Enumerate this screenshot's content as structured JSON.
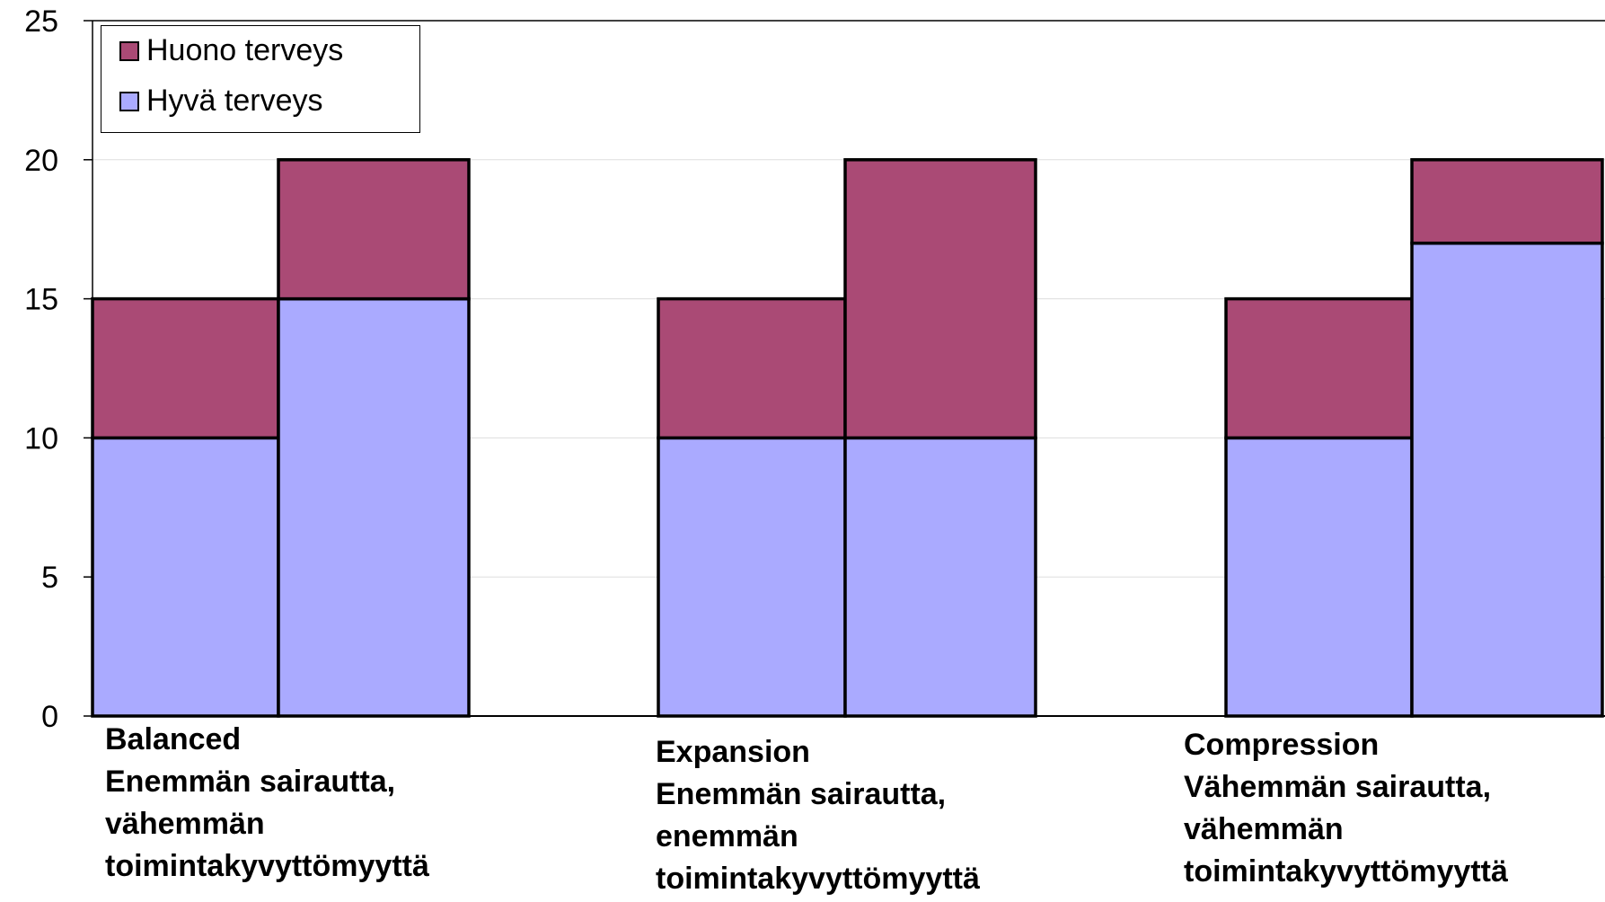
{
  "chart_data": {
    "type": "bar",
    "stacked": true,
    "ylim": [
      0,
      25
    ],
    "yticks": [
      "0",
      "5",
      "10",
      "15",
      "20",
      "25"
    ],
    "grid": true,
    "legend_position": "top-left",
    "series": [
      {
        "name": "Huono terveys",
        "color": "#aa4a75",
        "values": [
          5,
          5,
          5,
          10,
          5,
          3
        ]
      },
      {
        "name": "Hyvä terveys",
        "color": "#aaaaff",
        "values": [
          10,
          15,
          10,
          10,
          10,
          17
        ]
      }
    ],
    "legend_order": [
      "Huono terveys",
      "Hyvä terveys"
    ],
    "bar_groups": [
      {
        "label_lines": [
          "Balanced",
          "Enemmän sairautta,",
          "vähemmän",
          "toimintakyvyttömyyttä"
        ],
        "bars": [
          0,
          1
        ]
      },
      {
        "label_lines": [
          "Expansion",
          "Enemmän sairautta,",
          "enemmän",
          "toimintakyvyttömyyttä"
        ],
        "bars": [
          2,
          3
        ]
      },
      {
        "label_lines": [
          "Compression",
          "Vähemmän sairautta,",
          "vähemmän",
          "toimintakyvyttömyyttä"
        ],
        "bars": [
          4,
          5
        ]
      }
    ]
  }
}
